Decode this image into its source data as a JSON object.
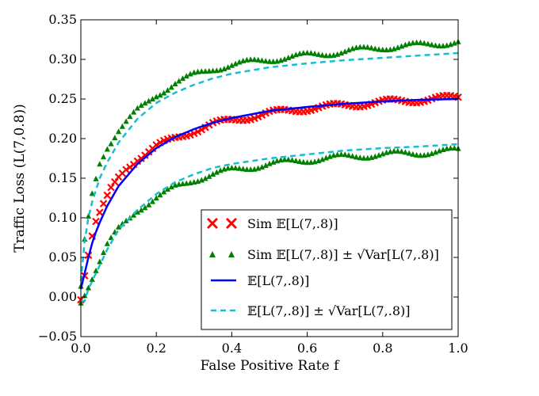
{
  "chart_data": {
    "type": "line",
    "title": "",
    "xlabel": "False Positive Rate f",
    "ylabel": "Traffic Loss (L(7,0.8))",
    "xlim": [
      0.0,
      1.0
    ],
    "ylim": [
      -0.05,
      0.35
    ],
    "xticks": [
      "0.0",
      "0.2",
      "0.4",
      "0.6",
      "0.8",
      "1.0"
    ],
    "yticks": [
      "−0.05",
      "0.00",
      "0.05",
      "0.10",
      "0.15",
      "0.20",
      "0.25",
      "0.30",
      "0.35"
    ],
    "xtick_values": [
      0.0,
      0.2,
      0.4,
      0.6,
      0.8,
      1.0
    ],
    "ytick_values": [
      -0.05,
      0.0,
      0.05,
      0.1,
      0.15,
      0.2,
      0.25,
      0.3,
      0.35
    ],
    "grid": false,
    "legend_position": "lower-right",
    "series": [
      {
        "name": "Sim E[L(7,.8)]",
        "legend": "Sim 𝔼[L(7,.8)]",
        "style": "x-markers",
        "color": "#ff0000",
        "x": [
          0.0,
          0.01,
          0.02,
          0.03,
          0.04,
          0.05,
          0.06,
          0.07,
          0.08,
          0.1,
          0.12,
          0.15,
          0.2,
          0.25,
          0.3,
          0.35,
          0.4,
          0.5,
          0.6,
          0.7,
          0.8,
          0.9,
          1.0
        ],
        "values": [
          0.0,
          0.03,
          0.055,
          0.078,
          0.095,
          0.105,
          0.115,
          0.125,
          0.135,
          0.15,
          0.162,
          0.175,
          0.19,
          0.2,
          0.21,
          0.218,
          0.223,
          0.232,
          0.238,
          0.242,
          0.246,
          0.249,
          0.252
        ]
      },
      {
        "name": "Sim E[L(7,.8)] ± sqrt(Var[L(7,.8)])",
        "legend": "Sim 𝔼[L(7,.8)] ± √Var[L(7,.8)]",
        "style": "triangle-markers",
        "color": "#008000",
        "upper": {
          "x": [
            0.0,
            0.01,
            0.02,
            0.03,
            0.04,
            0.05,
            0.07,
            0.1,
            0.15,
            0.2,
            0.25,
            0.3,
            0.35,
            0.4,
            0.5,
            0.6,
            0.7,
            0.8,
            0.9,
            1.0
          ],
          "values": [
            0.01,
            0.07,
            0.1,
            0.13,
            0.15,
            0.17,
            0.19,
            0.21,
            0.235,
            0.255,
            0.27,
            0.28,
            0.288,
            0.293,
            0.3,
            0.305,
            0.31,
            0.315,
            0.318,
            0.322
          ]
        },
        "lower": {
          "x": [
            0.0,
            0.01,
            0.02,
            0.03,
            0.04,
            0.05,
            0.07,
            0.1,
            0.15,
            0.2,
            0.25,
            0.3,
            0.35,
            0.4,
            0.5,
            0.6,
            0.7,
            0.8,
            0.9,
            1.0
          ],
          "values": [
            -0.005,
            0.005,
            0.015,
            0.025,
            0.035,
            0.045,
            0.065,
            0.085,
            0.11,
            0.125,
            0.138,
            0.148,
            0.155,
            0.16,
            0.168,
            0.173,
            0.177,
            0.18,
            0.182,
            0.185
          ]
        }
      },
      {
        "name": "E[L(7,.8)]",
        "legend": "𝔼[L(7,.8)]",
        "style": "solid-line",
        "color": "#0000ff",
        "x": [
          0.0,
          0.01,
          0.02,
          0.03,
          0.04,
          0.05,
          0.07,
          0.1,
          0.15,
          0.2,
          0.25,
          0.3,
          0.35,
          0.4,
          0.5,
          0.6,
          0.7,
          0.8,
          0.9,
          1.0
        ],
        "values": [
          0.01,
          0.03,
          0.05,
          0.068,
          0.082,
          0.094,
          0.115,
          0.14,
          0.168,
          0.188,
          0.202,
          0.212,
          0.22,
          0.226,
          0.235,
          0.24,
          0.244,
          0.247,
          0.249,
          0.25
        ]
      },
      {
        "name": "E[L(7,.8)] ± sqrt(Var[L(7,.8)])",
        "legend": "𝔼[L(7,.8)] ± √Var[L(7,.8)]",
        "style": "dashed-line",
        "color": "#17becf",
        "upper": {
          "x": [
            0.0,
            0.01,
            0.02,
            0.03,
            0.04,
            0.05,
            0.07,
            0.1,
            0.15,
            0.2,
            0.25,
            0.3,
            0.35,
            0.4,
            0.5,
            0.6,
            0.7,
            0.8,
            0.9,
            1.0
          ],
          "values": [
            0.02,
            0.07,
            0.1,
            0.12,
            0.135,
            0.15,
            0.17,
            0.195,
            0.225,
            0.245,
            0.258,
            0.268,
            0.276,
            0.282,
            0.29,
            0.295,
            0.299,
            0.302,
            0.305,
            0.308
          ]
        },
        "lower": {
          "x": [
            0.0,
            0.01,
            0.02,
            0.03,
            0.04,
            0.05,
            0.07,
            0.1,
            0.15,
            0.2,
            0.25,
            0.3,
            0.35,
            0.4,
            0.5,
            0.6,
            0.7,
            0.8,
            0.9,
            1.0
          ],
          "values": [
            -0.005,
            -0.005,
            0.01,
            0.02,
            0.03,
            0.04,
            0.06,
            0.085,
            0.11,
            0.13,
            0.145,
            0.155,
            0.163,
            0.168,
            0.175,
            0.18,
            0.185,
            0.188,
            0.19,
            0.193
          ]
        }
      }
    ]
  }
}
